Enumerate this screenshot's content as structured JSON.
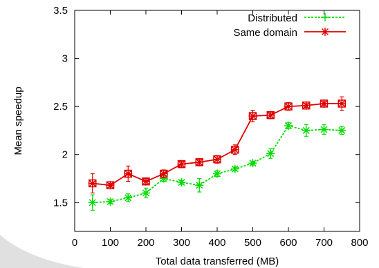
{
  "chart_data": {
    "type": "line",
    "title": "",
    "xlabel": "Total data transferred (MB)",
    "ylabel": "Mean speedup",
    "xlim": [
      0,
      800
    ],
    "ylim": [
      1.2,
      3.5
    ],
    "xticks": [
      0,
      100,
      200,
      300,
      400,
      500,
      600,
      700,
      800
    ],
    "yticks": [
      1.5,
      2,
      2.5,
      3,
      3.5
    ],
    "xtick_labels": [
      "0",
      "100",
      "200",
      "300",
      "400",
      "500",
      "600",
      "700",
      "800"
    ],
    "ytick_labels": [
      "1.5",
      "2",
      "2.5",
      "3",
      "3.5"
    ],
    "grid": false,
    "legend_position": "top-right",
    "series": [
      {
        "name": "Distributed",
        "color": "#00dd00",
        "line_style": "dashed",
        "marker": "plus",
        "x": [
          50,
          100,
          150,
          200,
          250,
          300,
          350,
          400,
          450,
          500,
          550,
          600,
          650,
          700,
          750
        ],
        "y": [
          1.5,
          1.51,
          1.55,
          1.6,
          1.75,
          1.71,
          1.68,
          1.8,
          1.85,
          1.91,
          2.01,
          2.3,
          2.25,
          2.26,
          2.25
        ],
        "err": [
          0.08,
          0.02,
          0.04,
          0.05,
          0.03,
          0.02,
          0.07,
          0.03,
          0.02,
          0.02,
          0.05,
          0.03,
          0.06,
          0.05,
          0.04
        ]
      },
      {
        "name": "Same domain",
        "color": "#dd0000",
        "line_style": "solid",
        "marker": "asterisk-box",
        "x": [
          50,
          100,
          150,
          200,
          250,
          300,
          350,
          400,
          450,
          500,
          550,
          600,
          650,
          700,
          750
        ],
        "y": [
          1.7,
          1.68,
          1.8,
          1.72,
          1.8,
          1.9,
          1.92,
          1.95,
          2.05,
          2.4,
          2.41,
          2.5,
          2.51,
          2.53,
          2.53
        ],
        "err": [
          0.1,
          0.02,
          0.08,
          0.03,
          0.04,
          0.03,
          0.03,
          0.04,
          0.05,
          0.06,
          0.03,
          0.04,
          0.02,
          0.02,
          0.07
        ]
      }
    ]
  }
}
